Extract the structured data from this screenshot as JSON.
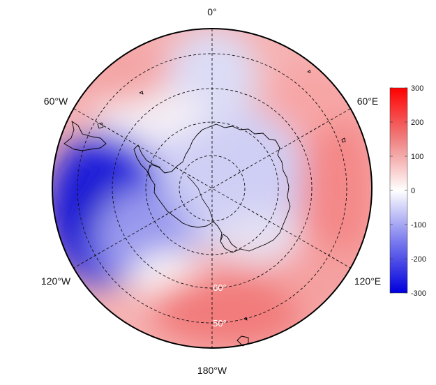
{
  "map": {
    "projection": "south-polar-stereographic",
    "longitude_labels": {
      "top": "0°",
      "upper_left": "60°W",
      "upper_right": "60°E",
      "lower_left": "120°W",
      "lower_right": "120°E",
      "bottom": "180°W"
    },
    "latitude_labels": [
      "60°",
      "50°"
    ],
    "field_description": "anomaly field",
    "colors": {
      "low": "#0000dd",
      "zero": "#ffffff",
      "high": "#ff0000",
      "grid": "#111111",
      "coast": "#000000"
    }
  },
  "colorbar": {
    "min": -300,
    "max": 300,
    "ticks": [
      "300",
      "200",
      "100",
      "0",
      "-100",
      "-200",
      "-300"
    ],
    "tick_values": [
      300,
      200,
      100,
      0,
      -100,
      -200,
      -300
    ]
  }
}
